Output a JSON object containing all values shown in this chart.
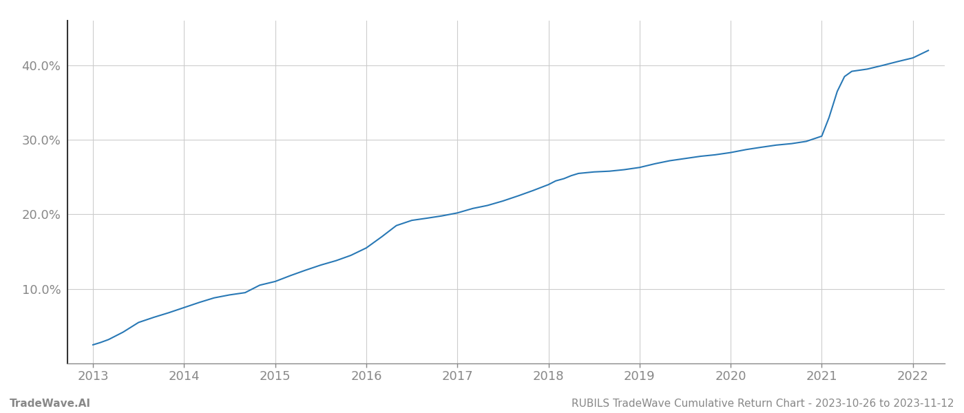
{
  "x_years": [
    2013.0,
    2013.08,
    2013.17,
    2013.33,
    2013.5,
    2013.67,
    2013.83,
    2014.0,
    2014.17,
    2014.33,
    2014.5,
    2014.67,
    2014.83,
    2015.0,
    2015.17,
    2015.33,
    2015.5,
    2015.67,
    2015.83,
    2016.0,
    2016.17,
    2016.33,
    2016.5,
    2016.67,
    2016.83,
    2017.0,
    2017.17,
    2017.33,
    2017.5,
    2017.67,
    2017.83,
    2018.0,
    2018.08,
    2018.17,
    2018.25,
    2018.33,
    2018.5,
    2018.67,
    2018.83,
    2019.0,
    2019.17,
    2019.33,
    2019.5,
    2019.67,
    2019.83,
    2020.0,
    2020.17,
    2020.33,
    2020.5,
    2020.67,
    2020.83,
    2021.0,
    2021.08,
    2021.17,
    2021.25,
    2021.33,
    2021.5,
    2021.67,
    2021.83,
    2022.0,
    2022.17
  ],
  "y_values": [
    2.5,
    2.8,
    3.2,
    4.2,
    5.5,
    6.2,
    6.8,
    7.5,
    8.2,
    8.8,
    9.2,
    9.5,
    10.5,
    11.0,
    11.8,
    12.5,
    13.2,
    13.8,
    14.5,
    15.5,
    17.0,
    18.5,
    19.2,
    19.5,
    19.8,
    20.2,
    20.8,
    21.2,
    21.8,
    22.5,
    23.2,
    24.0,
    24.5,
    24.8,
    25.2,
    25.5,
    25.7,
    25.8,
    26.0,
    26.3,
    26.8,
    27.2,
    27.5,
    27.8,
    28.0,
    28.3,
    28.7,
    29.0,
    29.3,
    29.5,
    29.8,
    30.5,
    33.0,
    36.5,
    38.5,
    39.2,
    39.5,
    40.0,
    40.5,
    41.0,
    42.0
  ],
  "line_color": "#2878b5",
  "line_width": 1.5,
  "background_color": "#ffffff",
  "grid_color": "#cccccc",
  "ytick_labels": [
    "10.0%",
    "20.0%",
    "30.0%",
    "40.0%"
  ],
  "ytick_values": [
    10,
    20,
    30,
    40
  ],
  "xtick_labels": [
    "2013",
    "2014",
    "2015",
    "2016",
    "2017",
    "2018",
    "2019",
    "2020",
    "2021",
    "2022"
  ],
  "xtick_values": [
    2013,
    2014,
    2015,
    2016,
    2017,
    2018,
    2019,
    2020,
    2021,
    2022
  ],
  "xlim": [
    2012.72,
    2022.35
  ],
  "ylim": [
    0,
    46
  ],
  "footer_left": "TradeWave.AI",
  "footer_right": "RUBILS TradeWave Cumulative Return Chart - 2023-10-26 to 2023-11-12",
  "tick_color": "#888888",
  "tick_fontsize": 13,
  "footer_fontsize": 11,
  "left_spine_color": "#333333",
  "bottom_spine_color": "#888888"
}
